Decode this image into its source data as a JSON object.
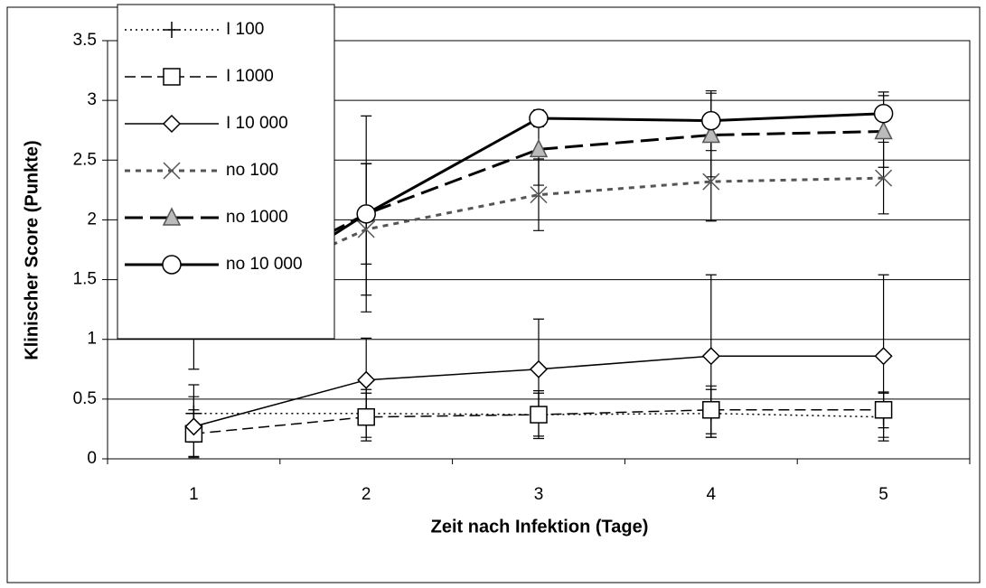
{
  "chart_data": {
    "type": "line",
    "x_label": "Zeit nach Infektion (Tage)",
    "y_label": "Klinischer Score (Punkte)",
    "categories": [
      "1",
      "2",
      "3",
      "4",
      "5"
    ],
    "ylim": [
      0,
      3.5
    ],
    "yticks": [
      0,
      0.5,
      1,
      1.5,
      2,
      2.5,
      3,
      3.5
    ],
    "grid": true,
    "legend": "top-left",
    "series": [
      {
        "name": "I 100",
        "color": "#000000",
        "dash": "2,4",
        "width": 1.5,
        "marker": "plus",
        "values": [
          0.38,
          0.38,
          0.37,
          0.38,
          0.35
        ],
        "errors": [
          0.24,
          0.2,
          0.18,
          0.2,
          0.2
        ]
      },
      {
        "name": "I 1000",
        "color": "#000000",
        "dash": "12,6",
        "width": 1.5,
        "marker": "square",
        "values": [
          0.21,
          0.35,
          0.37,
          0.41,
          0.41
        ],
        "errors": [
          0.2,
          0.2,
          0.2,
          0.2,
          0.15
        ]
      },
      {
        "name": "I 10 000",
        "color": "#000000",
        "dash": "",
        "width": 1.5,
        "marker": "diamond",
        "values": [
          0.27,
          0.66,
          0.75,
          0.86,
          0.86
        ],
        "errors": [
          0.25,
          0.35,
          0.42,
          0.68,
          0.68
        ]
      },
      {
        "name": "no 100",
        "color": "#555555",
        "dash": "6,6",
        "width": 3,
        "marker": "x",
        "values": [
          1.27,
          1.92,
          2.21,
          2.32,
          2.35
        ],
        "errors": [
          0.2,
          0.55,
          0.3,
          0.33,
          0.3
        ]
      },
      {
        "name": "no 1000",
        "color": "#000000",
        "dash": "20,8",
        "width": 3,
        "marker": "triangle",
        "values": [
          1.3,
          2.05,
          2.59,
          2.71,
          2.74
        ],
        "errors": [
          0.2,
          0.42,
          0.3,
          0.35,
          0.3
        ]
      },
      {
        "name": "no 10 000",
        "color": "#000000",
        "dash": "",
        "width": 3,
        "marker": "circle",
        "values": [
          1.13,
          2.05,
          2.85,
          2.83,
          2.89
        ],
        "errors": [
          0.38,
          0.82,
          0.07,
          0.25,
          0.18
        ]
      }
    ]
  }
}
